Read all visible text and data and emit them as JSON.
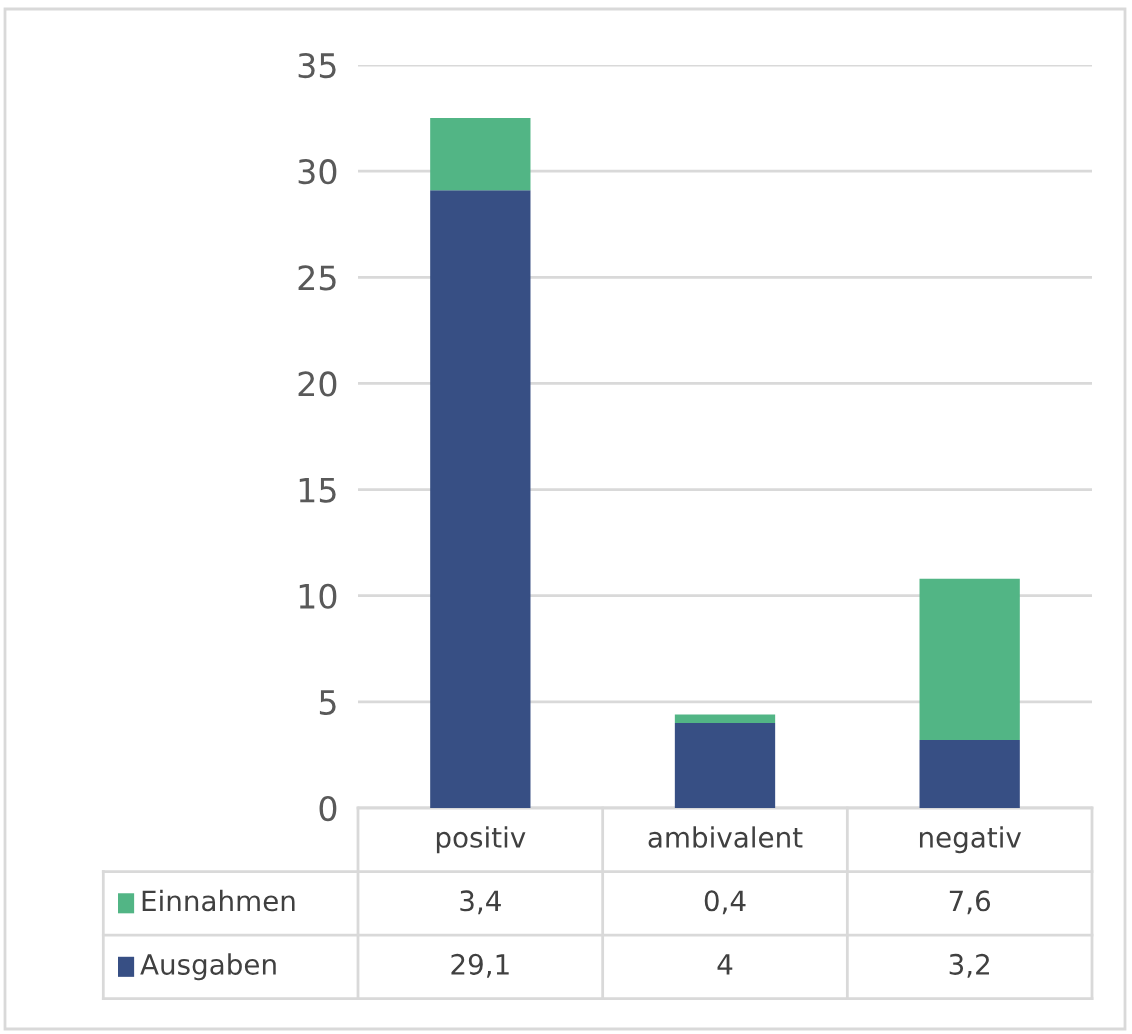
{
  "chart_data": {
    "type": "bar",
    "stacked": true,
    "categories": [
      "positiv",
      "ambivalent",
      "negativ"
    ],
    "series": [
      {
        "name": "Ausgaben",
        "color": "#374f84",
        "values": [
          29.1,
          4,
          3.2
        ],
        "value_labels": [
          "29,1",
          "4",
          "3,2"
        ]
      },
      {
        "name": "Einnahmen",
        "color": "#52b585",
        "values": [
          3.4,
          0.4,
          7.6
        ],
        "value_labels": [
          "3,4",
          "0,4",
          "7,6"
        ]
      }
    ],
    "ylim": [
      0,
      35
    ],
    "yticks": [
      0,
      5,
      10,
      15,
      20,
      25,
      30,
      35
    ],
    "grid": "y",
    "legend": "bottom"
  }
}
